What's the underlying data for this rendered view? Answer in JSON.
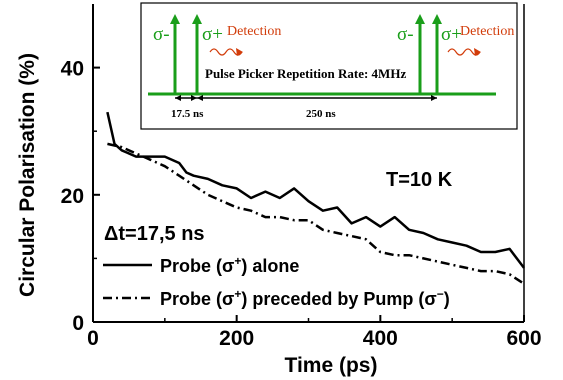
{
  "chart_data": {
    "type": "line",
    "xlabel": "Time (ps)",
    "ylabel": "Circular Polarisation (%)",
    "xlim": [
      0,
      600
    ],
    "ylim": [
      0,
      50
    ],
    "xticks": [
      0,
      200,
      400,
      600
    ],
    "yticks": [
      0,
      20,
      40
    ],
    "grid": false,
    "legend_position": "bottom-left",
    "annotations": {
      "temperature": "T=10 K",
      "delay": "Δt=17,5 ns"
    },
    "series": [
      {
        "name": "Probe (σ+) alone",
        "style": "solid",
        "color": "#000000",
        "x": [
          20,
          30,
          40,
          60,
          80,
          100,
          120,
          130,
          140,
          160,
          180,
          200,
          220,
          240,
          260,
          280,
          300,
          320,
          340,
          360,
          380,
          400,
          420,
          440,
          460,
          480,
          500,
          520,
          540,
          560,
          580,
          600
        ],
        "y": [
          33,
          28,
          27,
          26,
          26,
          26,
          25,
          23.5,
          23,
          22.5,
          21.5,
          21,
          19.5,
          20.5,
          19.5,
          21,
          19,
          17.5,
          18,
          15.5,
          16.5,
          15,
          16.5,
          14.5,
          14,
          13,
          12.5,
          12,
          11,
          11,
          11.5,
          8.5
        ]
      },
      {
        "name": "Probe (σ+) preceded by Pump (σ−)",
        "style": "dash-dot",
        "color": "#000000",
        "x": [
          20,
          40,
          60,
          80,
          100,
          120,
          140,
          160,
          180,
          200,
          220,
          240,
          260,
          280,
          300,
          320,
          340,
          360,
          380,
          400,
          420,
          440,
          460,
          480,
          500,
          520,
          540,
          560,
          580,
          600
        ],
        "y": [
          28,
          27.5,
          26.5,
          25.5,
          24.5,
          23,
          21.5,
          20,
          19,
          18,
          17.5,
          16.5,
          16.5,
          16,
          16,
          14.5,
          14,
          13.5,
          13,
          11,
          10.5,
          10.5,
          10,
          9.5,
          9,
          8.5,
          8,
          8,
          7.5,
          6
        ]
      }
    ],
    "inset": {
      "labels": {
        "sigma_minus_1": "σ-",
        "sigma_plus_1": "σ+",
        "detection_1": "Detection",
        "sigma_minus_2": "σ-",
        "sigma_plus_2": "σ+",
        "detection_2": "Detection",
        "repetition": "Pulse Picker Repetition Rate: 4MHz",
        "gap_short": "17.5 ns",
        "gap_long": "250 ns"
      },
      "colors": {
        "pulse": "#1a9e1a",
        "detection": "#d23c0a",
        "dimension": "#000000"
      }
    }
  }
}
